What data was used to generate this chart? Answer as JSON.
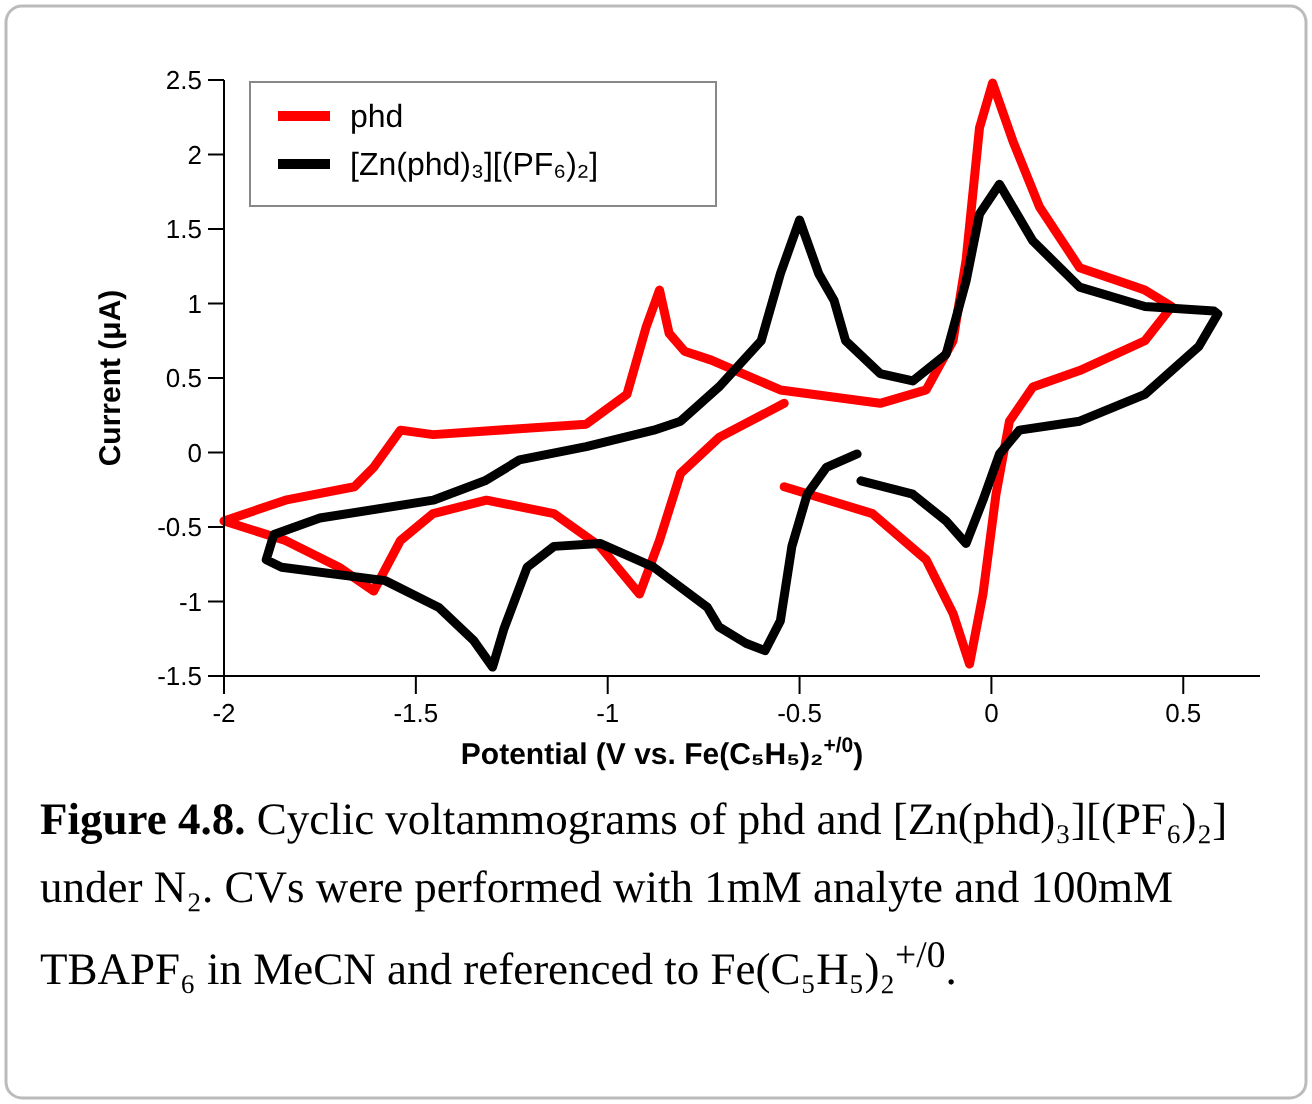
{
  "chart_data": {
    "type": "line",
    "xlabel": "Potential (V vs. Fe(C₅H₅)₂$^{+/0}$)",
    "ylabel": "Current (μA)",
    "xlim": [
      -2,
      0.7
    ],
    "xticks": [
      -2,
      -1.5,
      -1,
      -0.5,
      0,
      0.5
    ],
    "ylim": [
      -1.5,
      2.5
    ],
    "yticks": [
      -1.5,
      -1,
      -0.5,
      0,
      0.5,
      1,
      1.5,
      2,
      2.5
    ],
    "grid": false,
    "legend": "top left",
    "line_style": "solid",
    "marker": "none",
    "annotations": [
      "Figure 4.8.",
      "Cyclic voltammograms of phd and [Zn(phd)₃][(PF₆)₂] under N₂. CVs were performed with 1mM analyte and 100mM TBAPF₆ in MeCN and referenced to Fe(C₅H₅)₂$^{+/0}$."
    ],
    "series": [
      {
        "name": "phd",
        "color": "#ff0000",
        "x": [
          -0.54,
          -0.31,
          -0.17,
          -0.1,
          -0.057,
          -0.022,
          0.012,
          0.047,
          0.108,
          0.23,
          0.4,
          0.47,
          0.4,
          0.23,
          0.125,
          0.056,
          0.003,
          -0.031,
          -0.066,
          -0.1,
          -0.17,
          -0.29,
          -0.55,
          -0.73,
          -0.8,
          -0.84,
          -0.865,
          -0.9,
          -0.95,
          -1.056,
          -1.455,
          -1.54,
          -1.61,
          -1.66,
          -1.84,
          -2.0,
          -1.84,
          -1.7,
          -1.61,
          -1.54,
          -1.455,
          -1.316,
          -1.14,
          -1.02,
          -0.917,
          -0.865,
          -0.81,
          -0.71,
          -0.54
        ],
        "values": [
          -0.23,
          -0.41,
          -0.72,
          -1.08,
          -1.42,
          -0.95,
          -0.28,
          0.21,
          0.44,
          0.55,
          0.75,
          0.98,
          1.09,
          1.24,
          1.65,
          2.09,
          2.48,
          2.18,
          1.29,
          0.75,
          0.42,
          0.33,
          0.42,
          0.62,
          0.68,
          0.8,
          1.09,
          0.84,
          0.39,
          0.19,
          0.12,
          0.15,
          -0.1,
          -0.23,
          -0.32,
          -0.46,
          -0.59,
          -0.77,
          -0.93,
          -0.59,
          -0.41,
          -0.32,
          -0.41,
          -0.63,
          -0.95,
          -0.59,
          -0.14,
          0.1,
          0.33
        ]
      },
      {
        "name": "[Zn(phd)₃][(PF₆)₂]",
        "color": "#000000",
        "x": [
          -0.34,
          -0.205,
          -0.118,
          -0.066,
          -0.022,
          0.021,
          0.073,
          0.23,
          0.4,
          0.54,
          0.59,
          0.58,
          0.4,
          0.23,
          0.108,
          0.021,
          -0.031,
          -0.066,
          -0.118,
          -0.205,
          -0.29,
          -0.38,
          -0.41,
          -0.45,
          -0.5,
          -0.55,
          -0.6,
          -0.71,
          -0.81,
          -0.88,
          -1.056,
          -1.23,
          -1.32,
          -1.455,
          -1.75,
          -1.87,
          -1.89,
          -1.85,
          -1.58,
          -1.44,
          -1.35,
          -1.3,
          -1.27,
          -1.21,
          -1.14,
          -1.02,
          -0.88,
          -0.74,
          -0.71,
          -0.64,
          -0.59,
          -0.55,
          -0.52,
          -0.48,
          -0.43,
          -0.35
        ],
        "values": [
          -0.19,
          -0.28,
          -0.46,
          -0.61,
          -0.32,
          -0.01,
          0.15,
          0.21,
          0.39,
          0.71,
          0.93,
          0.95,
          0.98,
          1.11,
          1.42,
          1.8,
          1.6,
          1.15,
          0.66,
          0.48,
          0.53,
          0.75,
          1.02,
          1.2,
          1.56,
          1.2,
          0.75,
          0.44,
          0.21,
          0.15,
          0.04,
          -0.05,
          -0.19,
          -0.32,
          -0.44,
          -0.55,
          -0.72,
          -0.77,
          -0.86,
          -1.04,
          -1.26,
          -1.44,
          -1.18,
          -0.77,
          -0.63,
          -0.61,
          -0.77,
          -1.04,
          -1.17,
          -1.28,
          -1.33,
          -1.13,
          -0.63,
          -0.28,
          -0.1,
          -0.01
        ]
      }
    ]
  }
}
